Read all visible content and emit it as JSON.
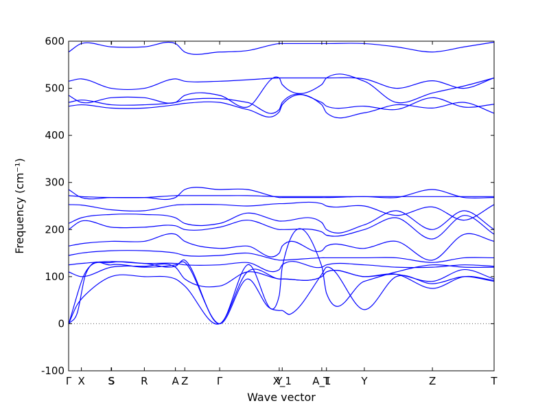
{
  "chart_data": {
    "type": "line",
    "title": "",
    "xlabel": "Wave vector",
    "ylabel": "Frequency (cm⁻¹)",
    "ylim": [
      -100,
      600
    ],
    "yticks": [
      -100,
      0,
      100,
      200,
      300,
      400,
      500,
      600
    ],
    "xlim": [
      0,
      100
    ],
    "xticks": [
      {
        "label": "Γ",
        "x": 0
      },
      {
        "label": "X",
        "x": 3
      },
      {
        "label": "S",
        "x": 10
      },
      {
        "label": "S",
        "x": 10.1
      },
      {
        "label": "R",
        "x": 17.8
      },
      {
        "label": "A",
        "x": 25.1
      },
      {
        "label": "Z",
        "x": 27.3
      },
      {
        "label": "Γ",
        "x": 35.5
      },
      {
        "label": "Y",
        "x": 49.5
      },
      {
        "label": "X_1",
        "x": 50.2
      },
      {
        "label": "A_1",
        "x": 59.5
      },
      {
        "label": "T",
        "x": 60.6
      },
      {
        "label": "Y",
        "x": 69.5
      },
      {
        "label": "Z",
        "x": 85.5
      },
      {
        "label": "T",
        "x": 100
      }
    ],
    "zero_line": {
      "y": 0,
      "style": "dotted",
      "color": "#555555"
    },
    "line_color": "#0000ff",
    "series": [
      {
        "x": [
          0,
          3,
          10,
          17.8,
          25.1,
          27.3,
          35.5,
          42,
          49.5,
          50.2,
          59.5,
          60.6,
          69.5,
          77,
          85.5,
          93,
          100
        ],
        "values": [
          577,
          595,
          588,
          588,
          595,
          577,
          577,
          580,
          595,
          595,
          595,
          595,
          595,
          588,
          577,
          588,
          598
        ]
      },
      {
        "x": [
          0,
          3,
          10,
          17.8,
          25.1,
          27.3,
          35.5,
          42,
          49.5,
          50.2,
          59.5,
          60.6,
          69.5,
          77,
          85.5,
          93,
          100
        ],
        "values": [
          515,
          520,
          500,
          500,
          520,
          515,
          515,
          518,
          522,
          522,
          522,
          522,
          520,
          500,
          516,
          500,
          522
        ]
      },
      {
        "x": [
          0,
          3,
          10,
          17.8,
          25.1,
          27.3,
          35.5,
          42,
          49.5,
          50.2,
          59.5,
          60.6,
          69.5,
          77,
          85.5,
          93,
          100
        ],
        "values": [
          485,
          470,
          480,
          480,
          470,
          485,
          485,
          460,
          522,
          508,
          508,
          522,
          515,
          470,
          490,
          505,
          522
        ]
      },
      {
        "x": [
          0,
          3,
          10,
          17.8,
          25.1,
          27.3,
          35.5,
          42,
          49.5,
          50.2,
          59.5,
          60.6,
          69.5,
          77,
          85.5,
          93,
          100
        ],
        "values": [
          470,
          475,
          465,
          465,
          470,
          475,
          478,
          470,
          455,
          470,
          470,
          462,
          462,
          455,
          480,
          460,
          466
        ]
      },
      {
        "x": [
          0,
          3,
          10,
          17.8,
          25.1,
          27.3,
          35.5,
          42,
          49.5,
          50.2,
          59.5,
          60.6,
          69.5,
          77,
          85.5,
          93,
          100
        ],
        "values": [
          462,
          465,
          458,
          458,
          465,
          468,
          470,
          455,
          450,
          465,
          465,
          448,
          448,
          465,
          458,
          470,
          447
        ]
      },
      {
        "x": [
          0,
          3,
          10,
          17.8,
          25.1,
          27.3,
          35.5,
          42,
          49.5,
          50.2,
          59.5,
          60.6,
          69.5,
          77,
          85.5,
          93,
          100
        ],
        "values": [
          285,
          268,
          268,
          268,
          268,
          285,
          285,
          285,
          268,
          268,
          268,
          268,
          270,
          268,
          285,
          268,
          268
        ]
      },
      {
        "x": [
          0,
          3,
          10,
          17.8,
          25.1,
          27.3,
          35.5,
          42,
          49.5,
          50.2,
          59.5,
          60.6,
          69.5,
          77,
          85.5,
          93,
          100
        ],
        "values": [
          272,
          270,
          268,
          268,
          272,
          272,
          272,
          272,
          270,
          270,
          270,
          270,
          270,
          270,
          270,
          270,
          270
        ]
      },
      {
        "x": [
          0,
          3,
          10,
          17.8,
          25.1,
          27.3,
          35.5,
          42,
          49.5,
          50.2,
          59.5,
          60.6,
          69.5,
          77,
          85.5,
          93,
          100
        ],
        "values": [
          253,
          252,
          242,
          240,
          252,
          253,
          253,
          250,
          255,
          255,
          255,
          250,
          250,
          230,
          248,
          220,
          253
        ]
      },
      {
        "x": [
          0,
          3,
          10,
          17.8,
          25.1,
          27.3,
          35.5,
          42,
          49.5,
          50.2,
          59.5,
          60.6,
          69.5,
          77,
          85.5,
          93,
          100
        ],
        "values": [
          213,
          225,
          232,
          232,
          225,
          213,
          213,
          235,
          218,
          218,
          215,
          200,
          210,
          240,
          200,
          240,
          200
        ]
      },
      {
        "x": [
          0,
          3,
          10,
          17.8,
          25.1,
          27.3,
          35.5,
          42,
          49.5,
          50.2,
          59.5,
          60.6,
          69.5,
          77,
          85.5,
          93,
          100
        ],
        "values": [
          200,
          218,
          205,
          205,
          208,
          200,
          205,
          220,
          200,
          200,
          195,
          188,
          200,
          225,
          180,
          230,
          190
        ]
      },
      {
        "x": [
          0,
          3,
          10,
          17.8,
          25.1,
          27.3,
          35.5,
          42,
          49.5,
          50.2,
          59.5,
          60.6,
          69.5,
          77,
          85.5,
          93,
          100
        ],
        "values": [
          165,
          170,
          175,
          175,
          190,
          175,
          160,
          165,
          150,
          165,
          155,
          165,
          160,
          175,
          135,
          190,
          175
        ]
      },
      {
        "x": [
          0,
          3,
          10,
          17.8,
          25.1,
          27.3,
          35.5,
          42,
          49.5,
          50.2,
          59.5,
          60.6,
          69.5,
          77,
          85.5,
          93,
          100
        ],
        "values": [
          145,
          150,
          155,
          155,
          150,
          145,
          145,
          150,
          135,
          135,
          140,
          140,
          140,
          140,
          130,
          140,
          140
        ]
      },
      {
        "x": [
          0,
          3,
          10,
          17.8,
          25.1,
          27.3,
          35.5,
          42,
          49.5,
          50.2,
          59.5,
          60.6,
          69.5,
          77,
          85.5,
          93,
          100
        ],
        "values": [
          125,
          128,
          132,
          128,
          128,
          125,
          125,
          130,
          115,
          125,
          120,
          125,
          125,
          120,
          120,
          125,
          122
        ]
      },
      {
        "x": [
          0,
          3,
          10,
          17.8,
          25.1,
          27.3,
          35.5,
          42,
          49.5,
          50.2,
          59.5,
          60.6,
          69.5,
          77,
          85.5,
          93,
          100
        ],
        "values": [
          110,
          100,
          120,
          122,
          120,
          95,
          80,
          110,
          95,
          95,
          100,
          110,
          100,
          105,
          90,
          115,
          95
        ]
      },
      {
        "x": [
          0,
          2,
          4,
          10,
          17.8,
          25.1,
          27.3,
          35.5,
          42,
          49.5,
          50.2,
          59.5,
          60.6,
          69.5,
          77,
          85.5,
          93,
          100
        ],
        "values": [
          0,
          40,
          62,
          100,
          100,
          95,
          80,
          0,
          110,
          95,
          95,
          100,
          110,
          100,
          105,
          75,
          100,
          92
        ]
      },
      {
        "x": [
          0,
          2,
          4,
          10,
          17.8,
          25.1,
          27.3,
          35.5,
          42,
          47,
          49.5,
          50.2,
          52,
          59.5,
          60.6,
          69.5,
          77,
          85.5,
          93,
          100
        ],
        "values": [
          0,
          22,
          105,
          125,
          120,
          125,
          130,
          0,
          95,
          35,
          28,
          28,
          20,
          105,
          120,
          30,
          100,
          85,
          100,
          90
        ]
      },
      {
        "x": [
          0,
          4,
          10,
          17.8,
          25.1,
          27.3,
          35.5,
          42,
          49.5,
          50.2,
          59.5,
          60.6,
          69.5,
          77,
          85.5,
          93,
          100
        ],
        "values": [
          0,
          110,
          130,
          128,
          122,
          135,
          0,
          125,
          60,
          120,
          122,
          65,
          90,
          110,
          125,
          120,
          120
        ]
      }
    ]
  }
}
